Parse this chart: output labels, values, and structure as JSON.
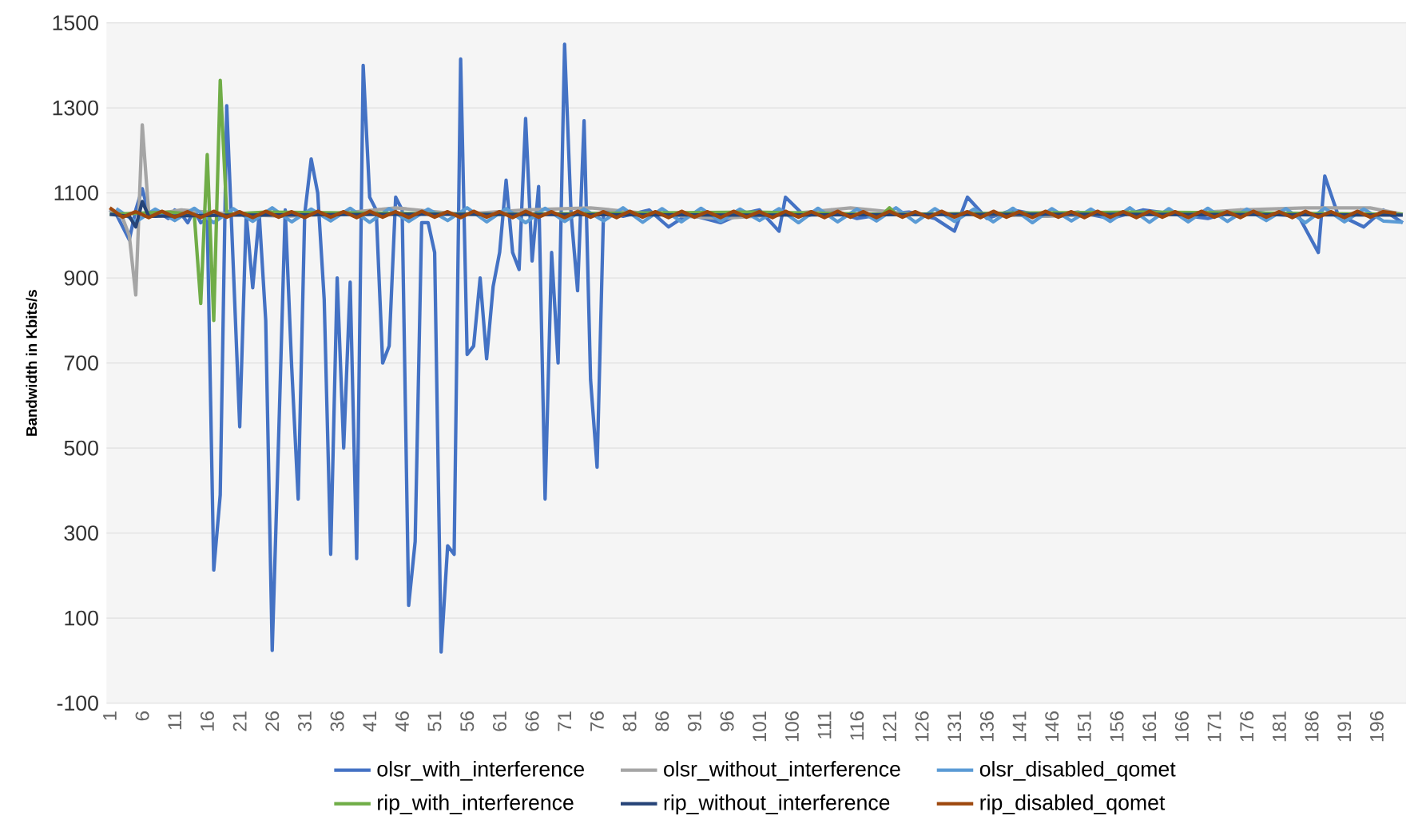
{
  "chart_data": {
    "type": "line",
    "ylabel": "Bandwidth in Kbits/s",
    "xlim": [
      0.5,
      200.5
    ],
    "xticks": [
      1,
      6,
      11,
      16,
      21,
      26,
      31,
      36,
      41,
      46,
      51,
      56,
      61,
      66,
      71,
      76,
      81,
      86,
      91,
      96,
      101,
      106,
      111,
      116,
      121,
      126,
      131,
      136,
      141,
      146,
      151,
      156,
      161,
      166,
      171,
      176,
      181,
      186,
      191,
      196
    ],
    "ylim": [
      -100,
      1500
    ],
    "yticks": [
      -100,
      100,
      300,
      500,
      700,
      900,
      1100,
      1300,
      1500
    ],
    "grid": "y",
    "legend": "bottom",
    "line_style": "solid",
    "series": [
      {
        "name": "olsr_with_interference",
        "color": "#4472c4",
        "x": [
          1,
          2,
          3,
          4,
          5,
          6,
          7,
          8,
          9,
          10,
          11,
          12,
          13,
          14,
          15,
          16,
          17,
          18,
          19,
          20,
          21,
          22,
          23,
          24,
          25,
          26,
          27,
          28,
          29,
          30,
          31,
          32,
          33,
          34,
          35,
          36,
          37,
          38,
          39,
          40,
          41,
          42,
          43,
          44,
          45,
          46,
          47,
          48,
          49,
          50,
          51,
          52,
          53,
          54,
          55,
          56,
          57,
          58,
          59,
          60,
          61,
          62,
          63,
          64,
          65,
          66,
          67,
          68,
          69,
          70,
          71,
          72,
          73,
          74,
          75,
          76,
          77,
          80,
          84,
          87,
          90,
          95,
          98,
          101,
          104,
          105,
          108,
          112,
          116,
          120,
          124,
          128,
          131,
          133,
          136,
          140,
          145,
          150,
          155,
          160,
          165,
          170,
          175,
          180,
          184,
          187,
          188,
          190,
          194,
          197,
          200
        ],
        "values": [
          1060,
          1050,
          1020,
          990,
          1060,
          1110,
          1050,
          1045,
          1050,
          1040,
          1060,
          1050,
          1030,
          1060,
          1030,
          1040,
          213,
          390,
          1305,
          930,
          550,
          1050,
          877,
          1050,
          800,
          24,
          530,
          1060,
          690,
          380,
          1050,
          1180,
          1100,
          850,
          250,
          900,
          500,
          890,
          240,
          1400,
          1090,
          1060,
          700,
          740,
          1090,
          1060,
          130,
          280,
          1030,
          1030,
          960,
          20,
          270,
          250,
          1415,
          720,
          740,
          900,
          710,
          880,
          960,
          1130,
          960,
          920,
          1275,
          940,
          1115,
          380,
          960,
          700,
          1450,
          1050,
          870,
          1270,
          660,
          455,
          1060,
          1045,
          1060,
          1020,
          1050,
          1030,
          1050,
          1060,
          1010,
          1090,
          1045,
          1060,
          1040,
          1050,
          1055,
          1040,
          1010,
          1090,
          1040,
          1060,
          1045,
          1055,
          1040,
          1060,
          1050,
          1040,
          1060,
          1050,
          1045,
          960,
          1140,
          1050,
          1020,
          1060,
          1030
        ]
      },
      {
        "name": "olsr_without_interference",
        "color": "#a5a5a5",
        "x": [
          1,
          3,
          4,
          5,
          6,
          7,
          8,
          12,
          20,
          28,
          35,
          45,
          55,
          65,
          75,
          85,
          95,
          105,
          115,
          125,
          135,
          145,
          155,
          165,
          175,
          185,
          195,
          200
        ],
        "values": [
          1060,
          1040,
          1000,
          860,
          1260,
          1050,
          1050,
          1060,
          1050,
          1045,
          1050,
          1065,
          1050,
          1060,
          1065,
          1050,
          1040,
          1050,
          1065,
          1050,
          1050,
          1045,
          1050,
          1050,
          1060,
          1065,
          1065,
          1050
        ]
      },
      {
        "name": "olsr_disabled_qomet",
        "color": "#5b9bd5",
        "x": [
          2,
          5,
          8,
          11,
          14,
          17,
          20,
          23,
          26,
          29,
          32,
          35,
          38,
          41,
          44,
          47,
          50,
          53,
          56,
          59,
          62,
          65,
          68,
          71,
          74,
          77,
          80,
          83,
          86,
          89,
          92,
          95,
          98,
          101,
          104,
          107,
          110,
          113,
          116,
          119,
          122,
          125,
          128,
          131,
          134,
          137,
          140,
          143,
          146,
          149,
          152,
          155,
          158,
          161,
          164,
          167,
          170,
          173,
          176,
          179,
          182,
          185,
          188,
          191,
          194,
          197,
          200
        ],
        "values": [
          1063,
          1032,
          1062,
          1035,
          1064,
          1030,
          1063,
          1033,
          1065,
          1032,
          1062,
          1034,
          1064,
          1031,
          1063,
          1033,
          1062,
          1035,
          1065,
          1032,
          1063,
          1030,
          1064,
          1033,
          1062,
          1034,
          1065,
          1031,
          1063,
          1032,
          1064,
          1033,
          1062,
          1035,
          1063,
          1030,
          1064,
          1032,
          1062,
          1034,
          1065,
          1031,
          1063,
          1033,
          1062,
          1032,
          1064,
          1030,
          1063,
          1034,
          1062,
          1033,
          1065,
          1031,
          1063,
          1032,
          1064,
          1033,
          1062,
          1035,
          1063,
          1030,
          1064,
          1032,
          1062,
          1034,
          1031
        ]
      },
      {
        "name": "rip_with_interference",
        "color": "#70ad47",
        "x": [
          1,
          10,
          14,
          15,
          16,
          17,
          18,
          19,
          25,
          60,
          100,
          120,
          121,
          122,
          160,
          200
        ],
        "values": [
          1050,
          1055,
          1050,
          840,
          1190,
          800,
          1365,
          1050,
          1055,
          1050,
          1055,
          1050,
          1065,
          1050,
          1055,
          1050
        ]
      },
      {
        "name": "rip_without_interference",
        "color": "#264478",
        "x": [
          1,
          4,
          5,
          6,
          7,
          20,
          50,
          100,
          150,
          200
        ],
        "values": [
          1050,
          1045,
          1020,
          1080,
          1045,
          1048,
          1050,
          1048,
          1050,
          1048
        ]
      },
      {
        "name": "rip_disabled_qomet",
        "color": "#9e480e",
        "x": [
          1,
          3,
          5,
          7,
          9,
          11,
          13,
          15,
          17,
          19,
          21,
          23,
          25,
          27,
          29,
          31,
          33,
          35,
          37,
          39,
          41,
          43,
          45,
          47,
          49,
          51,
          53,
          55,
          57,
          59,
          61,
          63,
          65,
          67,
          69,
          71,
          73,
          75,
          77,
          79,
          81,
          83,
          85,
          87,
          89,
          91,
          93,
          95,
          97,
          99,
          101,
          103,
          105,
          107,
          109,
          111,
          113,
          115,
          117,
          119,
          121,
          123,
          125,
          127,
          129,
          131,
          133,
          135,
          137,
          139,
          141,
          143,
          145,
          147,
          149,
          151,
          153,
          155,
          157,
          159,
          161,
          163,
          165,
          167,
          169,
          171,
          173,
          175,
          177,
          179,
          181,
          183,
          185,
          187,
          189,
          191,
          193,
          195,
          197,
          199
        ],
        "values": [
          1065,
          1043,
          1056,
          1042,
          1057,
          1043,
          1056,
          1042,
          1057,
          1043,
          1056,
          1042,
          1057,
          1043,
          1056,
          1042,
          1057,
          1043,
          1056,
          1042,
          1057,
          1043,
          1056,
          1042,
          1057,
          1043,
          1056,
          1042,
          1057,
          1043,
          1056,
          1042,
          1057,
          1043,
          1056,
          1042,
          1057,
          1043,
          1056,
          1042,
          1057,
          1043,
          1056,
          1042,
          1057,
          1043,
          1056,
          1042,
          1057,
          1043,
          1056,
          1042,
          1057,
          1043,
          1056,
          1042,
          1057,
          1043,
          1056,
          1042,
          1057,
          1043,
          1056,
          1042,
          1057,
          1043,
          1056,
          1042,
          1057,
          1043,
          1056,
          1042,
          1057,
          1043,
          1056,
          1042,
          1057,
          1043,
          1056,
          1042,
          1057,
          1043,
          1056,
          1042,
          1057,
          1043,
          1056,
          1042,
          1057,
          1043,
          1056,
          1042,
          1057,
          1043,
          1056,
          1042,
          1057,
          1043,
          1056,
          1052
        ]
      }
    ]
  }
}
